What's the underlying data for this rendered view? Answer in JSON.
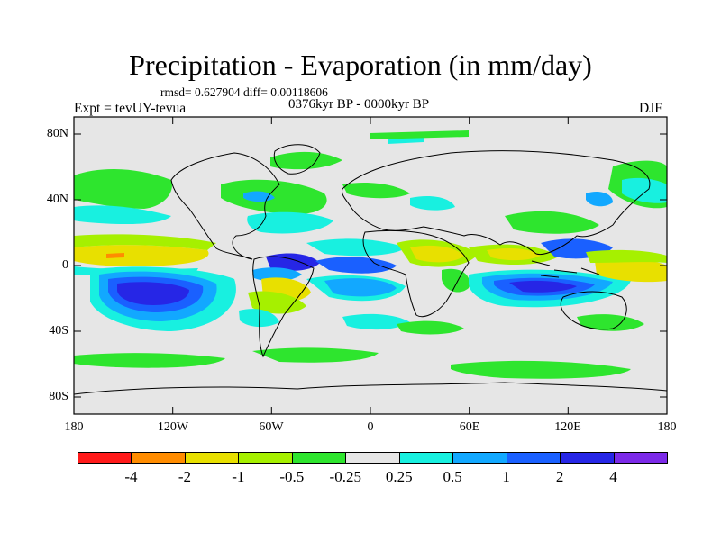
{
  "title": "Precipitation - Evaporation (in mm/day)",
  "stats": "rmsd= 0.627904 diff= 0.00118606",
  "period": "0376kyr BP - 0000kyr BP",
  "experiment": "Expt = tevUY-tevua",
  "season": "DJF",
  "lat_labels": [
    "80N",
    "40N",
    "0",
    "40S",
    "80S"
  ],
  "lon_labels": [
    "180",
    "120W",
    "60W",
    "0",
    "60E",
    "120E",
    "180"
  ],
  "colorbar": {
    "colors": [
      "#ff1a1a",
      "#ff8c00",
      "#e8e000",
      "#a6f000",
      "#2ee52e",
      "#e6e6e6",
      "#18f0e0",
      "#12a8ff",
      "#1a60ff",
      "#2626e6",
      "#7c2ae8"
    ],
    "labels": [
      "-4",
      "-2",
      "-1",
      "-0.5",
      "-0.25",
      "0.25",
      "0.5",
      "1",
      "2",
      "4"
    ]
  }
}
